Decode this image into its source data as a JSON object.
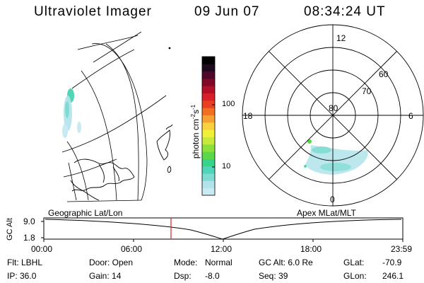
{
  "header": {
    "instrument": "Ultraviolet Imager",
    "date": "09 Jun 07",
    "time": "08:34:24 UT"
  },
  "colorbar": {
    "label_main": "photon cm",
    "label_sup1": "-2",
    "label_mid": "s",
    "label_sup2": "-1",
    "ticks": [
      "100",
      "10"
    ],
    "colors": [
      "#c8eaf0",
      "#b0e3ea",
      "#7fdcd2",
      "#4fd6b8",
      "#38d38a",
      "#5ad84a",
      "#8de03a",
      "#c8e83a",
      "#f0f03a",
      "#f8d040",
      "#f5a030",
      "#f07020",
      "#e84020",
      "#d8202a",
      "#b01028",
      "#800828",
      "#50082a",
      "#200820",
      "#000000"
    ]
  },
  "polar_plot": {
    "latitude_labels": [
      "80",
      "70",
      "60"
    ],
    "mlt_labels": {
      "top": "12",
      "left": "18",
      "right": "6",
      "bottom": "0"
    }
  },
  "altitude_panel": {
    "left_title": "Geographic Lat/Lon",
    "right_title": "Apex MLat/MLT",
    "y_label": "GC Alt",
    "y_ticks": [
      "9.0",
      "1.8"
    ],
    "x_ticks": [
      "00:00",
      "06:00",
      "12:00",
      "18:00",
      "23:59"
    ],
    "cursor_color": "#e02020"
  },
  "info": {
    "flt": "Flt: LBHL",
    "ip": "IP: 36.0",
    "door": "Door: Open",
    "gain": "Gain: 14",
    "mode_label": "Mode:",
    "mode_value": "Normal",
    "dsp_label": "Dsp:",
    "dsp_value": "-8.0",
    "gc_alt": "GC Alt: 6.0 Re",
    "seq": "Seq: 39",
    "glat_label": "GLat:",
    "glat_value": "-70.9",
    "glon_label": "GLon:",
    "glon_value": "246.1"
  }
}
